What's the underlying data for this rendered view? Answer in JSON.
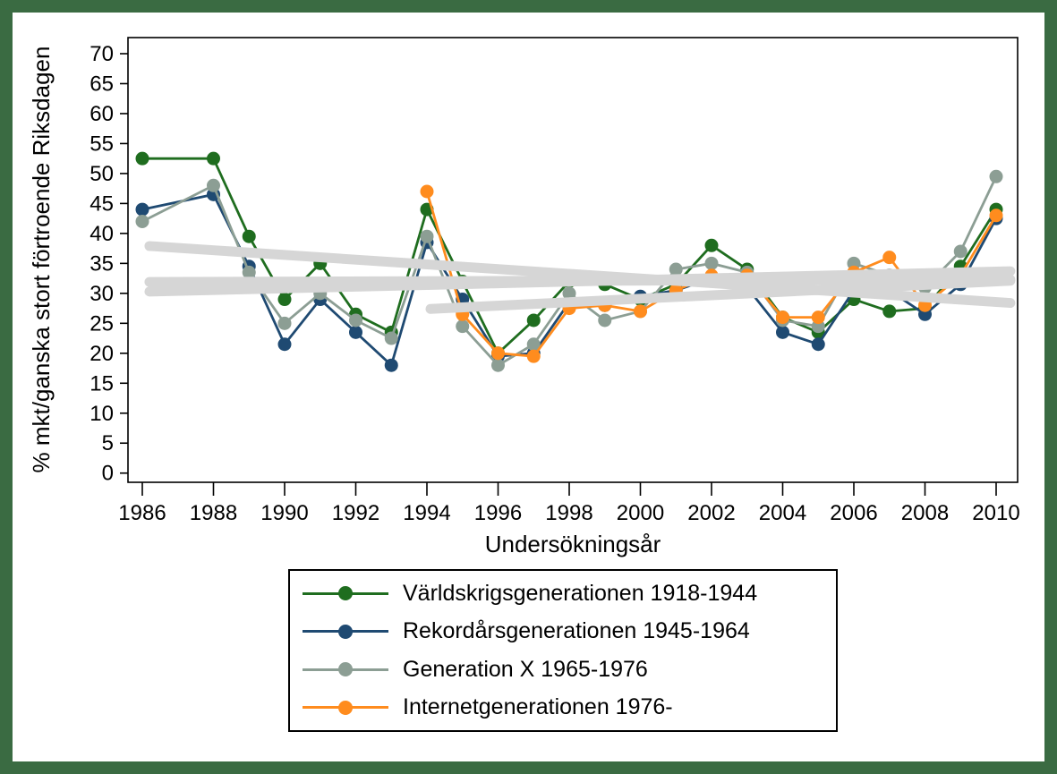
{
  "frame": {
    "border_color": "#3a6b42",
    "background_color": "#ffffff",
    "axis_color": "#000000"
  },
  "chart_data": {
    "type": "line",
    "title": "",
    "xlabel": "Undersökningsår",
    "ylabel": "% mkt/ganska stort förtroende Riksdagen",
    "x_ticks": [
      1986,
      1988,
      1990,
      1992,
      1994,
      1996,
      1998,
      2000,
      2002,
      2004,
      2006,
      2008,
      2010
    ],
    "y_ticks": [
      0,
      5,
      10,
      15,
      20,
      25,
      30,
      35,
      40,
      45,
      50,
      55,
      60,
      65,
      70
    ],
    "ylim": [
      0,
      70
    ],
    "xlim": [
      1985.6,
      2010.6
    ],
    "grid": "off",
    "legend_position": "bottom",
    "years": [
      1986,
      1988,
      1989,
      1990,
      1991,
      1992,
      1993,
      1994,
      1995,
      1996,
      1997,
      1998,
      1999,
      2000,
      2001,
      2002,
      2003,
      2004,
      2005,
      2006,
      2007,
      2008,
      2009,
      2010
    ],
    "series": [
      {
        "name": "Världskrigsgenerationen 1918-1944",
        "color": "#1f6d1f",
        "values": [
          52.5,
          52.5,
          39.5,
          29,
          35,
          26.5,
          23.5,
          44,
          32,
          20,
          25.5,
          32,
          31.5,
          29,
          31.5,
          38,
          34,
          26,
          23.5,
          29,
          27,
          27.5,
          34.5,
          44
        ]
      },
      {
        "name": "Rekordårsgenerationen 1945-1964",
        "color": "#1f4a72",
        "values": [
          44,
          46.5,
          34.5,
          21.5,
          29,
          23.5,
          18,
          38.5,
          29,
          19.5,
          20,
          28.5,
          28,
          29.5,
          30.5,
          32.5,
          31,
          23.5,
          21.5,
          30.5,
          30.5,
          26.5,
          31.5,
          42.5
        ]
      },
      {
        "name": "Generation X 1965-1976",
        "color": "#8c9e94",
        "values": [
          42,
          48,
          33.5,
          25,
          30,
          25.5,
          22.5,
          39.5,
          24.5,
          18,
          21.5,
          30,
          25.5,
          27,
          34,
          35,
          33.5,
          25.5,
          24.5,
          35,
          33,
          31,
          37,
          49.5
        ]
      },
      {
        "name": "Internetgenerationen 1976-",
        "color": "#ff8c1e",
        "values": [
          null,
          null,
          null,
          null,
          null,
          null,
          null,
          47,
          26.5,
          20,
          19.5,
          27.5,
          28,
          27,
          30.5,
          33,
          33,
          26,
          26,
          33.5,
          36,
          28,
          33,
          43
        ]
      }
    ],
    "trend_lines": [
      {
        "series": "Världskrigsgenerationen 1918-1944",
        "color": "#d6d6d6",
        "from": {
          "x": 1986.2,
          "y": 37.9
        },
        "to": {
          "x": 2010.4,
          "y": 28.4
        }
      },
      {
        "series": "Rekordårsgenerationen 1945-1964",
        "color": "#d6d6d6",
        "from": {
          "x": 1986.2,
          "y": 31.9
        },
        "to": {
          "x": 2010.4,
          "y": 32.3
        }
      },
      {
        "series": "Generation X 1965-1976",
        "color": "#d6d6d6",
        "from": {
          "x": 1986.2,
          "y": 30.3
        },
        "to": {
          "x": 2010.4,
          "y": 33.7
        }
      },
      {
        "series": "Internetgenerationen 1976-",
        "color": "#d6d6d6",
        "from": {
          "x": 1994.1,
          "y": 27.4
        },
        "to": {
          "x": 2010.4,
          "y": 32.1
        }
      }
    ]
  }
}
